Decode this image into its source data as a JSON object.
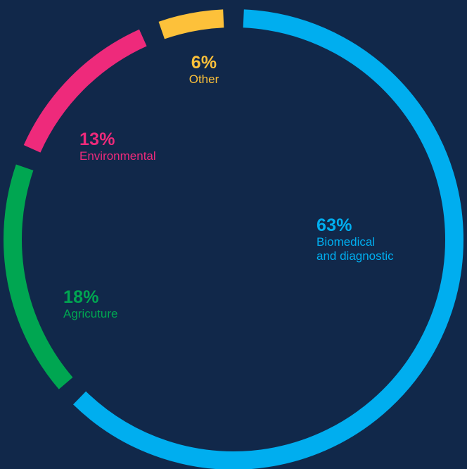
{
  "background_color": "#11284a",
  "chart_data": {
    "type": "pie",
    "style": "donut-ring",
    "title": "",
    "direction": "clockwise",
    "start": "top",
    "slices": [
      {
        "label": "Biomedical and diagnostic",
        "label_lines": [
          "Biomedical",
          "and diagnostic"
        ],
        "value": 63,
        "display": "63%",
        "color": "#00aeef"
      },
      {
        "label": "Agricuture",
        "label_lines": [
          "Agricuture"
        ],
        "value": 18,
        "display": "18%",
        "color": "#00a651"
      },
      {
        "label": "Environmental",
        "label_lines": [
          "Environmental"
        ],
        "value": 13,
        "display": "13%",
        "color": "#ee2a7b"
      },
      {
        "label": "Other",
        "label_lines": [
          "Other"
        ],
        "value": 6,
        "display": "6%",
        "color": "#fdc13a"
      }
    ]
  }
}
